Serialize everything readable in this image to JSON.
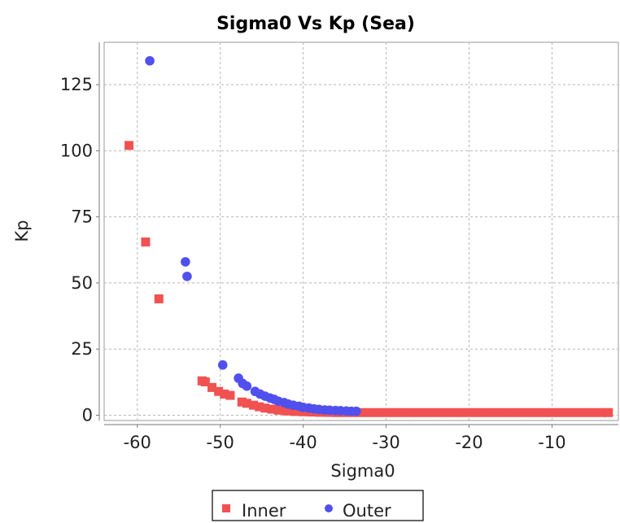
{
  "chart_data": {
    "type": "scatter",
    "title": "Sigma0 Vs Kp (Sea)",
    "xlabel": "Sigma0",
    "ylabel": "Kp",
    "xlim": [
      -64,
      -2
    ],
    "ylim": [
      -2,
      141
    ],
    "xticks": [
      -60,
      -50,
      -40,
      -30,
      -20,
      -10
    ],
    "yticks": [
      0,
      25,
      50,
      75,
      100,
      125
    ],
    "grid": true,
    "legend_position": "bottom-center",
    "series": [
      {
        "name": "Inner",
        "marker": "square",
        "color": "#f25151",
        "points": [
          [
            -61,
            102
          ],
          [
            -59,
            65.5
          ],
          [
            -57.4,
            44
          ],
          [
            -52.2,
            13
          ],
          [
            -51.8,
            12.6
          ],
          [
            -51,
            10.5
          ],
          [
            -50.2,
            9
          ],
          [
            -49.5,
            8
          ],
          [
            -48.8,
            7.5
          ],
          [
            -47.4,
            5
          ],
          [
            -46.8,
            4.5
          ],
          [
            -46,
            3.8
          ],
          [
            -45.3,
            3.2
          ],
          [
            -44.6,
            2.7
          ],
          [
            -43.8,
            2.3
          ],
          [
            -43,
            1.9
          ],
          [
            -42,
            1.6
          ],
          [
            -41,
            1.4
          ],
          [
            -40,
            1.3
          ],
          [
            -39,
            1.2
          ],
          [
            -38,
            1.1
          ],
          [
            -37,
            1.05
          ],
          [
            -36,
            1
          ],
          [
            -35,
            1
          ],
          [
            -34,
            1
          ],
          [
            -33,
            1
          ],
          [
            -32,
            1
          ],
          [
            -31,
            1
          ],
          [
            -30,
            1
          ],
          [
            -29,
            1
          ],
          [
            -28,
            1
          ],
          [
            -27,
            1
          ],
          [
            -26,
            1
          ],
          [
            -25,
            1
          ],
          [
            -24,
            1
          ],
          [
            -23,
            1
          ],
          [
            -22,
            1
          ],
          [
            -21,
            1
          ],
          [
            -20,
            1
          ],
          [
            -19,
            1
          ],
          [
            -18,
            1
          ],
          [
            -17,
            1
          ],
          [
            -16,
            1
          ],
          [
            -15,
            1
          ],
          [
            -14,
            1
          ],
          [
            -13,
            1
          ],
          [
            -12,
            1
          ],
          [
            -11,
            1
          ],
          [
            -10,
            1
          ],
          [
            -9,
            1
          ],
          [
            -8,
            1
          ],
          [
            -7,
            1
          ],
          [
            -6,
            1
          ],
          [
            -5,
            1
          ],
          [
            -4,
            1
          ],
          [
            -3.2,
            1
          ]
        ]
      },
      {
        "name": "Outer",
        "marker": "circle",
        "color": "#5050ef",
        "points": [
          [
            -58.5,
            134
          ],
          [
            -54.2,
            58
          ],
          [
            -54,
            52.5
          ],
          [
            -49.7,
            19
          ],
          [
            -47.8,
            14
          ],
          [
            -47.3,
            12
          ],
          [
            -46.8,
            11
          ],
          [
            -45.8,
            9
          ],
          [
            -45.2,
            8
          ],
          [
            -44.6,
            7.2
          ],
          [
            -44,
            6.5
          ],
          [
            -43.5,
            6
          ],
          [
            -43,
            5.3
          ],
          [
            -42.3,
            4.8
          ],
          [
            -41.8,
            4.2
          ],
          [
            -41.2,
            3.8
          ],
          [
            -40.5,
            3.4
          ],
          [
            -40,
            3
          ],
          [
            -39.3,
            2.7
          ],
          [
            -38.7,
            2.4
          ],
          [
            -38.1,
            2.2
          ],
          [
            -37.4,
            2
          ],
          [
            -36.8,
            1.9
          ],
          [
            -36.1,
            1.8
          ],
          [
            -35.5,
            1.7
          ],
          [
            -34.8,
            1.6
          ],
          [
            -34.2,
            1.5
          ],
          [
            -33.6,
            1.5
          ]
        ]
      }
    ]
  }
}
